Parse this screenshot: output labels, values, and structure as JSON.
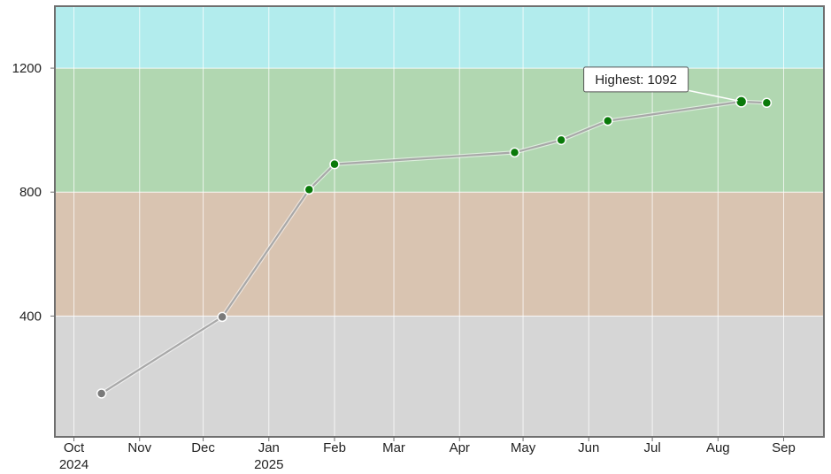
{
  "chart_data": {
    "type": "line",
    "title": "",
    "xlabel": "",
    "ylabel": "",
    "x_axis": {
      "type": "date",
      "range": [
        "2024-09-22",
        "2025-09-20"
      ],
      "ticks": [
        {
          "date": "2024-10-01",
          "label": "Oct",
          "sublabel": "2024"
        },
        {
          "date": "2024-11-01",
          "label": "Nov",
          "sublabel": ""
        },
        {
          "date": "2024-12-01",
          "label": "Dec",
          "sublabel": ""
        },
        {
          "date": "2025-01-01",
          "label": "Jan",
          "sublabel": "2025"
        },
        {
          "date": "2025-02-01",
          "label": "Feb",
          "sublabel": ""
        },
        {
          "date": "2025-03-01",
          "label": "Mar",
          "sublabel": ""
        },
        {
          "date": "2025-04-01",
          "label": "Apr",
          "sublabel": ""
        },
        {
          "date": "2025-05-01",
          "label": "May",
          "sublabel": ""
        },
        {
          "date": "2025-06-01",
          "label": "Jun",
          "sublabel": ""
        },
        {
          "date": "2025-07-01",
          "label": "Jul",
          "sublabel": ""
        },
        {
          "date": "2025-08-01",
          "label": "Aug",
          "sublabel": ""
        },
        {
          "date": "2025-09-01",
          "label": "Sep",
          "sublabel": ""
        }
      ]
    },
    "y_axis": {
      "range": [
        10,
        1400
      ],
      "ticks": [
        {
          "value": 400,
          "label": "400"
        },
        {
          "value": 800,
          "label": "800"
        },
        {
          "value": 1200,
          "label": "1200"
        }
      ]
    },
    "grid": true,
    "bands": [
      {
        "from": 10,
        "to": 400,
        "color": "#d6d6d6"
      },
      {
        "from": 400,
        "to": 800,
        "color": "#d9c4b1"
      },
      {
        "from": 800,
        "to": 1200,
        "color": "#b1d7b1"
      },
      {
        "from": 1200,
        "to": 1400,
        "color": "#b2eced"
      }
    ],
    "series": [
      {
        "line_color": "#a8a8a8",
        "points": [
          {
            "date": "2024-10-14",
            "value": 150,
            "color": "#7a7a7a"
          },
          {
            "date": "2024-12-10",
            "value": 397,
            "color": "#7a7a7a"
          },
          {
            "date": "2025-01-20",
            "value": 808,
            "color": "#0a7a0a"
          },
          {
            "date": "2025-02-01",
            "value": 890,
            "color": "#0a7a0a"
          },
          {
            "date": "2025-04-27",
            "value": 928,
            "color": "#0a7a0a"
          },
          {
            "date": "2025-05-19",
            "value": 968,
            "color": "#0a7a0a"
          },
          {
            "date": "2025-06-10",
            "value": 1030,
            "color": "#0a7a0a"
          },
          {
            "date": "2025-08-12",
            "value": 1092,
            "color": "#0a7a0a",
            "highlight": true
          },
          {
            "date": "2025-08-24",
            "value": 1088,
            "color": "#0a7a0a"
          }
        ]
      }
    ],
    "annotation": {
      "text": "Highest: 1092",
      "point_index": 7
    }
  }
}
